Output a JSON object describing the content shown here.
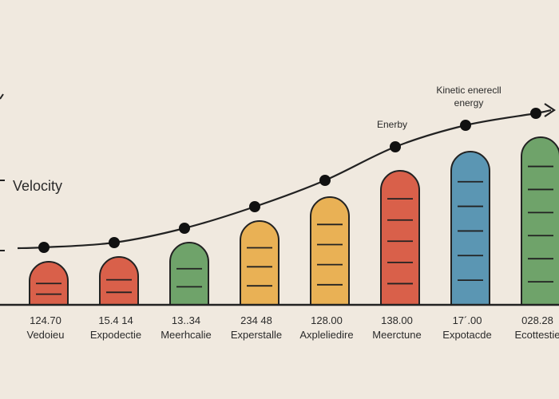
{
  "chart_data": {
    "type": "bar",
    "ylabel": "Velocity",
    "grid": false,
    "categories": [
      "Vedoieu",
      "Expodectie",
      "Meerhcalie",
      "Experstalle",
      "Axpleliedire",
      "Meerctune",
      "Expotacde",
      "Ecottestie"
    ],
    "value_labels": [
      "124.70",
      "15.4 14",
      "13..34",
      "234 48",
      "128.00",
      "138.00",
      "17´.00",
      "028.28"
    ],
    "bar_values": [
      18,
      20,
      26,
      35,
      45,
      56,
      64,
      70
    ],
    "bar_colors": [
      "#d9604a",
      "#d9604a",
      "#6fa36a",
      "#e9b155",
      "#e9b155",
      "#d9604a",
      "#5b96b3",
      "#6fa36a"
    ],
    "line_values": [
      24,
      26,
      32,
      41,
      52,
      66,
      75,
      80
    ],
    "annotations": [
      {
        "text": "Enerby",
        "category": 5
      },
      {
        "lines": [
          "Kinetic enerecll",
          "energy"
        ],
        "category": 6
      }
    ],
    "ylim": [
      0,
      100
    ]
  }
}
